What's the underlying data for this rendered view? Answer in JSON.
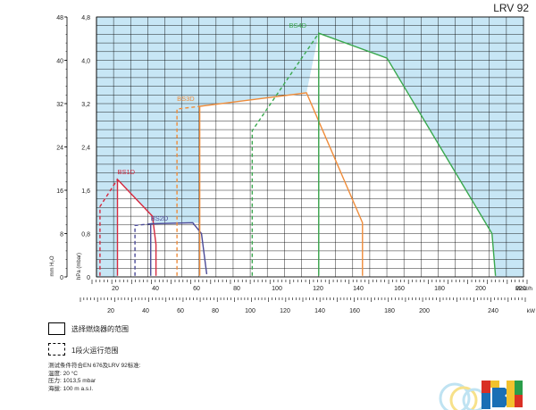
{
  "model": "LRV 92",
  "legend": {
    "solid_label": "选择燃烧器的范围",
    "dashed_label": "1段火运行范围"
  },
  "notes": [
    "测试条件符合EN 676及LRV 92标准:",
    "温度: 20 °C",
    "压力: 1013,5 mbar",
    "海拔: 100 m a.s.l."
  ],
  "colors": {
    "background_region": "#c7e6f5",
    "grid": "#000000",
    "BS1D": "#d62a40",
    "BS2D": "#4b4a97",
    "BS3D": "#ef8c3a",
    "BS4D": "#3aa84e"
  },
  "chart_data": {
    "type": "line",
    "axes": {
      "y_left_label": "mm H₂O",
      "y_right_label": "hPa (mbar)",
      "y_mm_ticks": [
        "0",
        "8",
        "16",
        "24",
        "32",
        "40",
        "48"
      ],
      "y_hpa_ticks": [
        "0",
        "0,8",
        "1,6",
        "2,4",
        "3,2",
        "4,0",
        "4,8"
      ],
      "ylim_hpa": [
        0,
        4.8
      ],
      "x_top_label": "Mcal/h",
      "x_top_ticks": [
        "20",
        "40",
        "60",
        "80",
        "100",
        "120",
        "140",
        "160",
        "180",
        "200",
        "220"
      ],
      "x_bottom_label": "kW",
      "x_bottom_ticks": [
        "20",
        "40",
        "60",
        "80",
        "100",
        "120",
        "140",
        "160",
        "180",
        "200",
        "240"
      ],
      "xlim_kw": [
        12,
        256
      ]
    },
    "grid": true,
    "series": [
      {
        "name": "BS1D",
        "color": "#d62a40",
        "label_at": [
          24,
          1.9
        ],
        "outline": [
          [
            24,
            0.02
          ],
          [
            24,
            1.8
          ],
          [
            44,
            1.12
          ],
          [
            46,
            0.6
          ],
          [
            46,
            0.02
          ]
        ],
        "dashed_left": [
          [
            14,
            0.02
          ],
          [
            14,
            1.3
          ],
          [
            24,
            1.8
          ]
        ]
      },
      {
        "name": "BS2D",
        "color": "#4b4a97",
        "label_at": [
          43,
          1.04
        ],
        "outline": [
          [
            43,
            0.02
          ],
          [
            43,
            0.98
          ],
          [
            67,
            1.0
          ],
          [
            72,
            0.8
          ],
          [
            75,
            0.05
          ]
        ],
        "dashed_left": [
          [
            34,
            0.02
          ],
          [
            34,
            0.95
          ],
          [
            43,
            0.98
          ]
        ]
      },
      {
        "name": "BS3D",
        "color": "#ef8c3a",
        "label_at": [
          58,
          3.25
        ],
        "outline": [
          [
            71,
            0.02
          ],
          [
            71,
            3.15
          ],
          [
            132,
            3.4
          ],
          [
            164,
            1.0
          ],
          [
            164,
            0.02
          ]
        ],
        "dashed_left": [
          [
            58,
            0.02
          ],
          [
            58,
            3.1
          ],
          [
            71,
            3.15
          ]
        ]
      },
      {
        "name": "BS4D",
        "color": "#3aa84e",
        "label_at": [
          122,
          4.6
        ],
        "outline": [
          [
            139,
            0.02
          ],
          [
            139,
            4.5
          ],
          [
            178,
            4.04
          ],
          [
            238,
            0.8
          ],
          [
            240,
            0.02
          ]
        ],
        "dashed_left": [
          [
            101,
            0.02
          ],
          [
            101,
            2.7
          ],
          [
            139,
            4.5
          ]
        ]
      }
    ]
  }
}
